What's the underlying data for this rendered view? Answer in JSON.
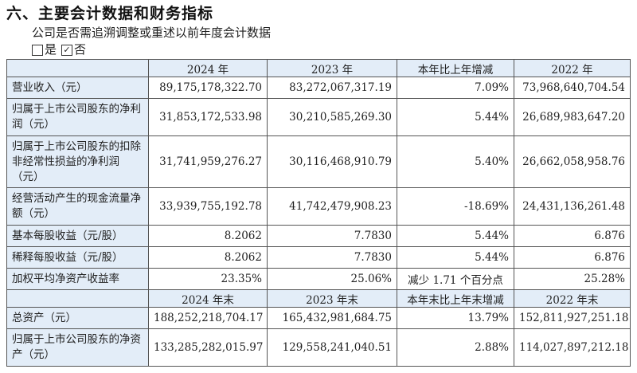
{
  "section_title": "六、主要会计数据和财务指标",
  "question": "公司是否需追溯调整或重述以前年度会计数据",
  "options": [
    {
      "label": "是",
      "checked": false
    },
    {
      "label": "否",
      "checked": true
    }
  ],
  "headers_period": [
    "",
    "2024 年",
    "2023 年",
    "本年比上年增减",
    "2022 年"
  ],
  "rows_period": [
    {
      "label": "营业收入（元）",
      "values": [
        "89,175,178,322.70",
        "83,272,067,317.19",
        "7.09%",
        "73,968,640,704.54"
      ]
    },
    {
      "label": "归属于上市公司股东的净利润（元）",
      "values": [
        "31,853,172,533.98",
        "30,210,585,269.30",
        "5.44%",
        "26,689,983,647.20"
      ]
    },
    {
      "label": "归属于上市公司股东的扣除非经常性损益的净利润（元）",
      "values": [
        "31,741,959,276.27",
        "30,116,468,910.79",
        "5.40%",
        "26,662,058,958.76"
      ]
    },
    {
      "label": "经营活动产生的现金流量净额（元）",
      "values": [
        "33,939,755,192.78",
        "41,742,479,908.23",
        "-18.69%",
        "24,431,136,261.48"
      ]
    },
    {
      "label": "基本每股收益（元/股）",
      "values": [
        "8.2062",
        "7.7830",
        "5.44%",
        "6.876"
      ]
    },
    {
      "label": "稀释每股收益（元/股）",
      "values": [
        "8.2062",
        "7.7830",
        "5.44%",
        "6.876"
      ]
    },
    {
      "label": "加权平均净资产收益率",
      "values": [
        "23.35%",
        "25.06%",
        "减少 1.71 个百分点",
        "25.28%"
      ]
    }
  ],
  "headers_end": [
    "",
    "2024 年末",
    "2023 年末",
    "本年末比上年末增减",
    "2022 年末"
  ],
  "rows_end": [
    {
      "label": "总资产（元）",
      "values": [
        "188,252,218,704.17",
        "165,432,981,684.75",
        "13.79%",
        "152,811,927,251.18"
      ]
    },
    {
      "label": "归属于上市公司股东的净资产（元）",
      "values": [
        "133,285,282,015.97",
        "129,558,241,040.51",
        "2.88%",
        "114,027,897,212.18"
      ]
    }
  ],
  "colors": {
    "header_bg": "#e3edf8",
    "border": "#555555"
  }
}
